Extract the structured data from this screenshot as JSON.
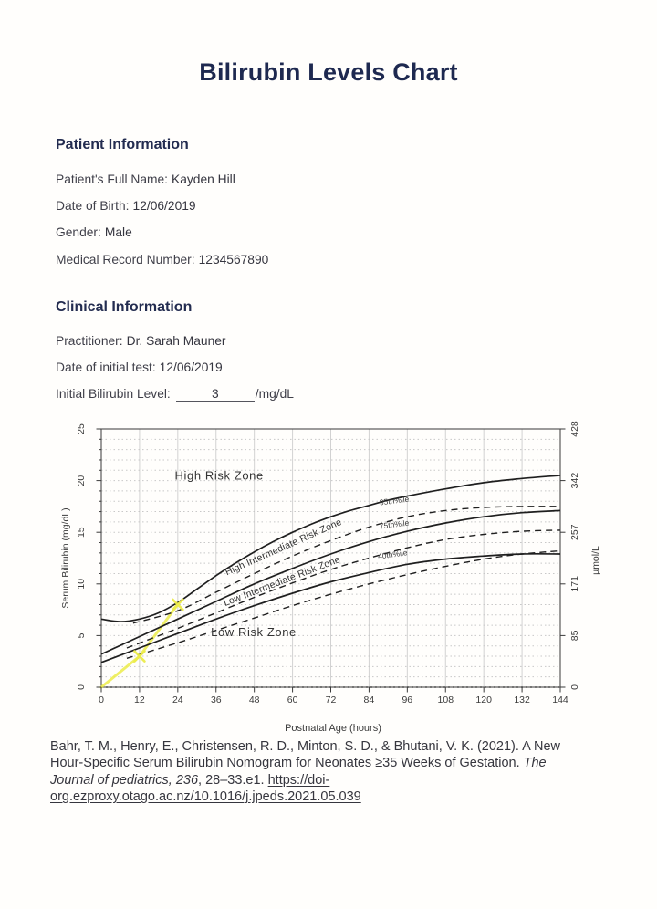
{
  "page": {
    "title": "Bilirubin Levels Chart"
  },
  "patient_section": {
    "heading": "Patient Information",
    "fields": [
      {
        "label": "Patient's Full Name:",
        "value": "Kayden Hill"
      },
      {
        "label": "Date of Birth:",
        "value": "12/06/2019"
      },
      {
        "label": "Gender:",
        "value": "Male"
      },
      {
        "label": "Medical Record Number:",
        "value": "1234567890"
      }
    ]
  },
  "clinical_section": {
    "heading": "Clinical Information",
    "fields": [
      {
        "label": "Practitioner:",
        "value": "Dr. Sarah Mauner"
      },
      {
        "label": "Date of initial test:",
        "value": "12/06/2019"
      }
    ],
    "bilirubin_field": {
      "label": "Initial Bilirubin Level:",
      "value": "3",
      "suffix": "/mg/dL"
    }
  },
  "chart_data": {
    "type": "line",
    "title": "",
    "xlabel": "Postnatal Age (hours)",
    "ylabel_left": "Serum Bilirubin (mg/dL)",
    "ylabel_right": "µmol/L",
    "xlim": [
      0,
      144
    ],
    "ylim": [
      0,
      25
    ],
    "grid": true,
    "x_ticks": [
      0,
      12,
      24,
      36,
      48,
      60,
      72,
      84,
      96,
      108,
      120,
      132,
      144
    ],
    "y_ticks_left": [
      0,
      5,
      10,
      15,
      20,
      25
    ],
    "y_ticks_right": [
      {
        "value": 0,
        "label": "0"
      },
      {
        "value": 5,
        "label": "85"
      },
      {
        "value": 10,
        "label": "171"
      },
      {
        "value": 15,
        "label": "257"
      },
      {
        "value": 20,
        "label": "342"
      },
      {
        "value": 25,
        "label": "428"
      }
    ],
    "zone_labels": [
      {
        "label": "High Risk Zone",
        "x": 37,
        "y": 20.1,
        "rotation": 0,
        "size": 13,
        "spacing": 0.6
      },
      {
        "label": "High Intermediate Risk Zone",
        "x": 57.5,
        "y": 13.3,
        "rotation": -24,
        "size": 10.5,
        "spacing": 0.2
      },
      {
        "label": "Low Intermediate Risk Zone",
        "x": 57,
        "y": 10.0,
        "rotation": -21,
        "size": 10.5,
        "spacing": 0.2
      },
      {
        "label": "Low Risk Zone",
        "x": 47.8,
        "y": 4.95,
        "rotation": 0,
        "size": 13,
        "spacing": 0.6
      }
    ],
    "percentile_labels": [
      {
        "label": "95th%ile",
        "x": 92,
        "y": 17.8,
        "rotation": -7
      },
      {
        "label": "75th%ile",
        "x": 92,
        "y": 15.5,
        "rotation": -7
      },
      {
        "label": "40th%ile",
        "x": 91.5,
        "y": 12.6,
        "rotation": -8
      }
    ],
    "series": [
      {
        "name": "95th percentile (hour-specific nomogram)",
        "style": "solid",
        "points": [
          [
            0,
            6.6
          ],
          [
            6,
            6.35
          ],
          [
            12,
            6.6
          ],
          [
            18,
            7.2
          ],
          [
            24,
            8.2
          ],
          [
            30,
            9.5
          ],
          [
            36,
            10.8
          ],
          [
            42,
            12.0
          ],
          [
            48,
            13.1
          ],
          [
            54,
            14.1
          ],
          [
            60,
            15.0
          ],
          [
            66,
            15.8
          ],
          [
            72,
            16.5
          ],
          [
            78,
            17.1
          ],
          [
            84,
            17.6
          ],
          [
            90,
            18.1
          ],
          [
            96,
            18.5
          ],
          [
            108,
            19.2
          ],
          [
            120,
            19.8
          ],
          [
            132,
            20.2
          ],
          [
            144,
            20.5
          ]
        ]
      },
      {
        "name": "75th percentile (hour-specific nomogram)",
        "style": "solid",
        "points": [
          [
            0,
            3.2
          ],
          [
            12,
            4.9
          ],
          [
            24,
            6.6
          ],
          [
            36,
            8.3
          ],
          [
            48,
            10.0
          ],
          [
            60,
            11.5
          ],
          [
            72,
            12.9
          ],
          [
            84,
            14.1
          ],
          [
            96,
            15.1
          ],
          [
            108,
            15.9
          ],
          [
            120,
            16.5
          ],
          [
            132,
            16.9
          ],
          [
            144,
            17.1
          ]
        ]
      },
      {
        "name": "40th percentile (hour-specific nomogram)",
        "style": "solid",
        "points": [
          [
            0,
            2.4
          ],
          [
            12,
            3.8
          ],
          [
            24,
            5.2
          ],
          [
            36,
            6.6
          ],
          [
            48,
            7.9
          ],
          [
            60,
            9.1
          ],
          [
            72,
            10.2
          ],
          [
            84,
            11.1
          ],
          [
            96,
            11.9
          ],
          [
            108,
            12.4
          ],
          [
            120,
            12.7
          ],
          [
            132,
            12.9
          ],
          [
            144,
            12.9
          ]
        ]
      },
      {
        "name": "95th%ile (Bhutani)",
        "style": "dashed",
        "points": [
          [
            10,
            6.2
          ],
          [
            24,
            7.4
          ],
          [
            36,
            9.2
          ],
          [
            48,
            11.0
          ],
          [
            60,
            12.7
          ],
          [
            72,
            14.2
          ],
          [
            84,
            15.5
          ],
          [
            96,
            16.5
          ],
          [
            108,
            17.1
          ],
          [
            120,
            17.4
          ],
          [
            132,
            17.5
          ],
          [
            144,
            17.5
          ]
        ]
      },
      {
        "name": "75th%ile (Bhutani)",
        "style": "dashed",
        "points": [
          [
            8,
            3.8
          ],
          [
            24,
            5.7
          ],
          [
            36,
            7.2
          ],
          [
            48,
            8.7
          ],
          [
            60,
            10.1
          ],
          [
            72,
            11.4
          ],
          [
            84,
            12.5
          ],
          [
            96,
            13.5
          ],
          [
            108,
            14.3
          ],
          [
            120,
            14.8
          ],
          [
            132,
            15.1
          ],
          [
            144,
            15.2
          ]
        ]
      },
      {
        "name": "40th%ile (Bhutani)",
        "style": "dashed",
        "points": [
          [
            8,
            2.8
          ],
          [
            24,
            4.3
          ],
          [
            36,
            5.5
          ],
          [
            48,
            6.7
          ],
          [
            60,
            7.9
          ],
          [
            72,
            9.0
          ],
          [
            84,
            10.0
          ],
          [
            96,
            10.9
          ],
          [
            108,
            11.7
          ],
          [
            120,
            12.4
          ],
          [
            132,
            12.9
          ],
          [
            144,
            13.2
          ]
        ]
      }
    ],
    "patient_plot": {
      "name": "patient bilirubin trace",
      "color": "#ecec4a",
      "points": [
        [
          0,
          0
        ],
        [
          12,
          3
        ],
        [
          24,
          8
        ]
      ],
      "markers": [
        [
          12,
          3
        ],
        [
          24,
          8
        ]
      ]
    },
    "ink_color": "#1f1f1f",
    "grid_color": "#d2d2d2",
    "grid_dot_color": "#c8c8c8",
    "tick_text_color": "#3b3b3b"
  },
  "citation": {
    "lines": [
      [
        {
          "t": "Bahr, T. M., Henry, E., Christensen, R. D., Minton, S. D., & Bhutani, V. K. (2021). A New",
          "s": "n"
        }
      ],
      [
        {
          "t": "Hour-Specific Serum Bilirubin Nomogram for Neonates ≥35 Weeks of Gestation. ",
          "s": "n"
        },
        {
          "t": "The",
          "s": "i"
        }
      ],
      [
        {
          "t": "Journal of pediatrics, 236",
          "s": "i"
        },
        {
          "t": ", 28–33.e1. ",
          "s": "n"
        },
        {
          "t": "https://doi-",
          "s": "l"
        }
      ],
      [
        {
          "t": "org.ezproxy.otago.ac.nz/10.1016/j.jpeds.2021.05.039",
          "s": "l"
        }
      ]
    ]
  }
}
